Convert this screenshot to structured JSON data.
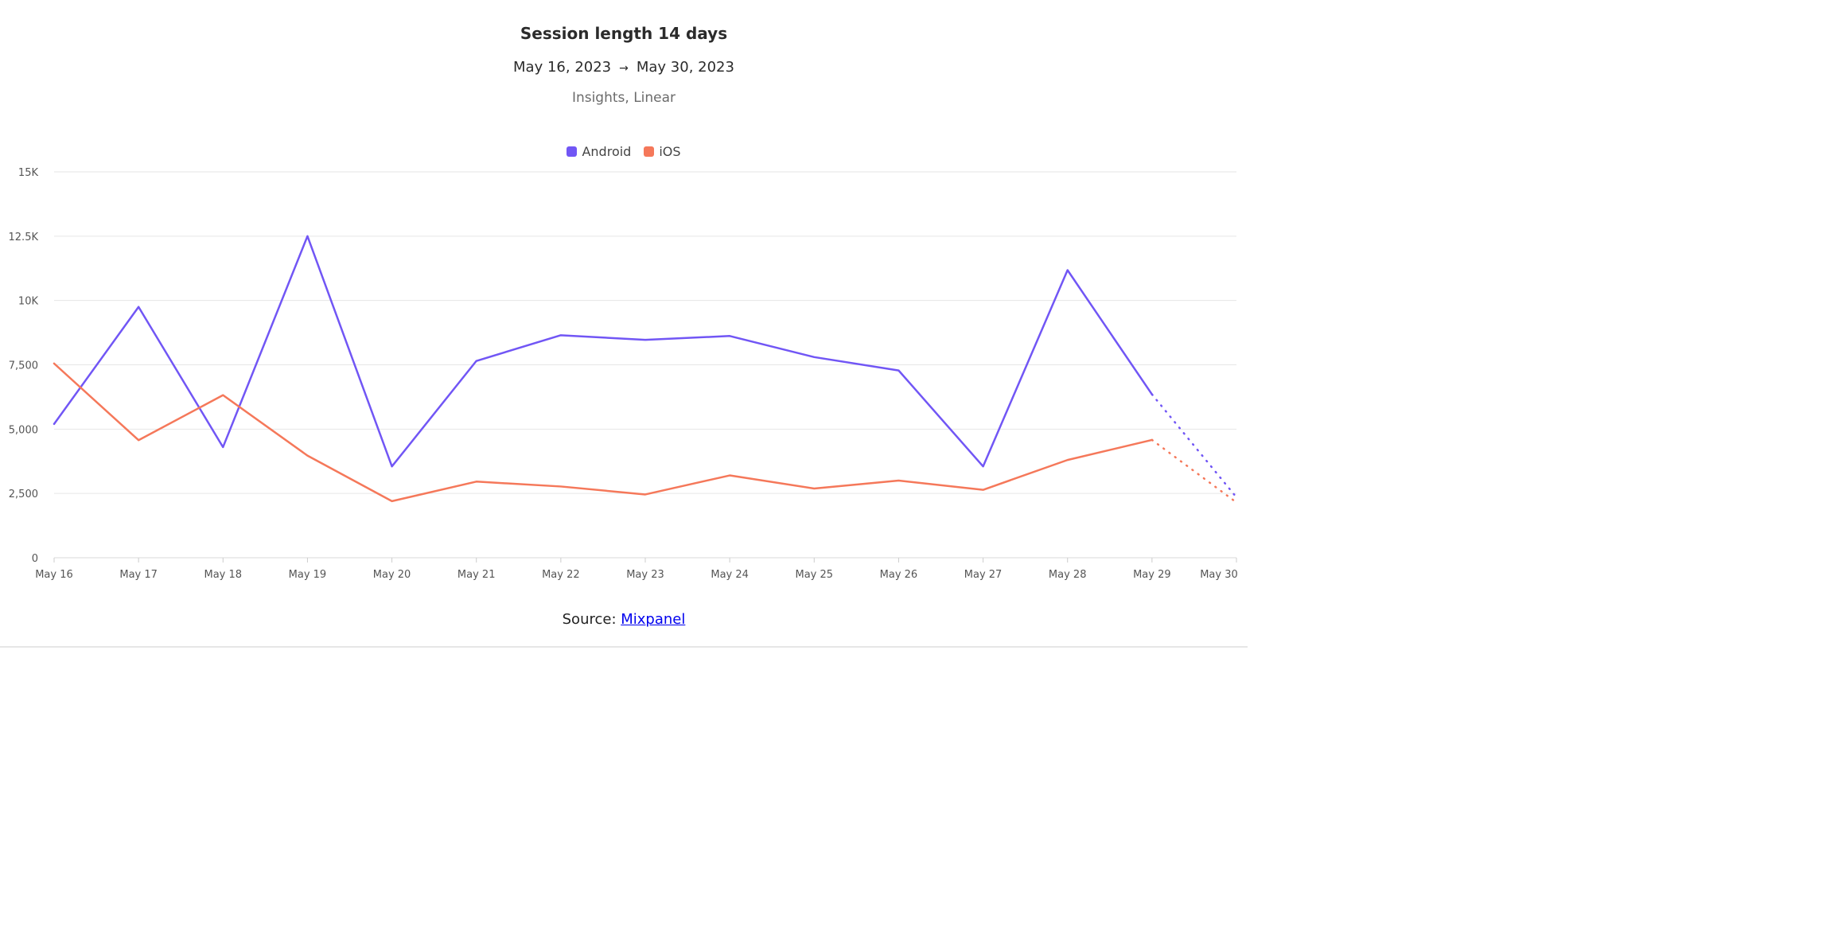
{
  "chart_data": {
    "type": "line",
    "title": "Session length 14 days",
    "date_start": "May 16, 2023",
    "date_arrow": "→",
    "date_end": "May 30, 2023",
    "subtitle": "Insights, Linear",
    "categories": [
      "May 16",
      "May 17",
      "May 18",
      "May 19",
      "May 20",
      "May 21",
      "May 22",
      "May 23",
      "May 24",
      "May 25",
      "May 26",
      "May 27",
      "May 28",
      "May 29",
      "May 30"
    ],
    "y_ticks": [
      "0",
      "2,500",
      "5,000",
      "7,500",
      "10K",
      "12.5K",
      "15K"
    ],
    "y_tick_values": [
      0,
      2500,
      5000,
      7500,
      10000,
      12500,
      15000
    ],
    "ylim": [
      0,
      15000
    ],
    "grid": true,
    "legend_position": "top-center",
    "partial_last_point": true,
    "series": [
      {
        "name": "Android",
        "color": "#7156f5",
        "values": [
          5200,
          9750,
          4300,
          12500,
          3550,
          7650,
          8650,
          8470,
          8620,
          7800,
          7280,
          3550,
          11180,
          6350,
          2350
        ]
      },
      {
        "name": "iOS",
        "color": "#f5785a",
        "values": [
          7550,
          4570,
          6320,
          3970,
          2200,
          2960,
          2770,
          2460,
          3200,
          2690,
          3000,
          2640,
          3800,
          4580,
          2150
        ]
      }
    ]
  },
  "footer": {
    "source_label": "Source: ",
    "source_link": "Mixpanel"
  }
}
